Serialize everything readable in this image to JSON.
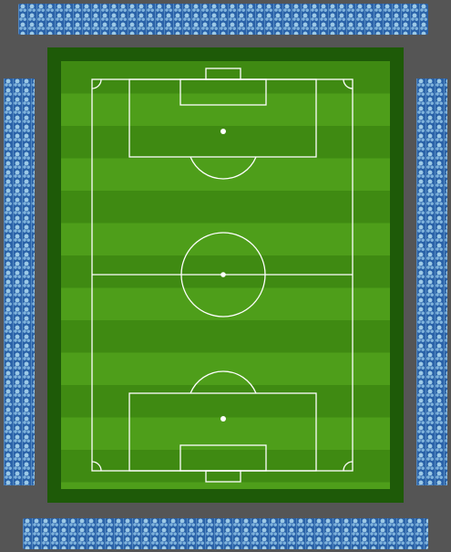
{
  "screen": "stadium-pitch",
  "colors": {
    "background": "#555555",
    "stands": "#2a62a8",
    "crowd": "#9cc9e6",
    "pitch_border": "#1e5a08",
    "grass_dark": "#3f8a12",
    "grass_light": "#4e9e1a",
    "lines": "#ffffff"
  },
  "icons": {
    "crowd": "crowd-pattern-icon"
  }
}
